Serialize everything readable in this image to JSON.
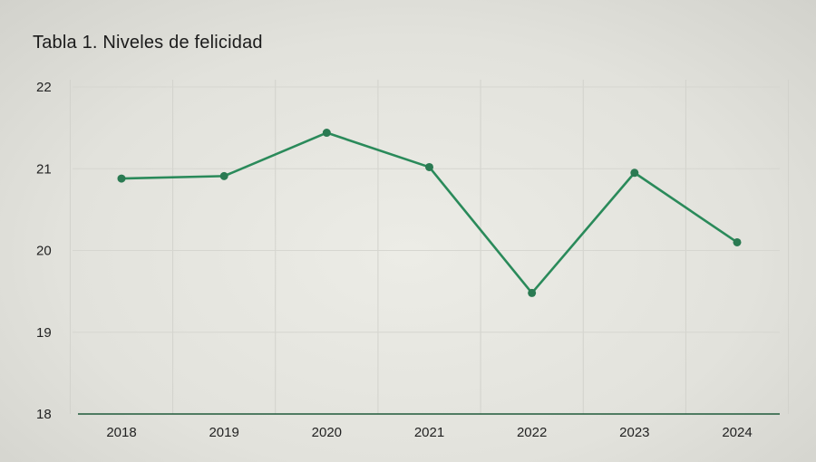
{
  "chart_data": {
    "type": "line",
    "title": "Tabla 1. Niveles de felicidad",
    "categories": [
      "2018",
      "2019",
      "2020",
      "2021",
      "2022",
      "2023",
      "2024"
    ],
    "series": [
      {
        "values": [
          20.88,
          20.91,
          21.44,
          21.02,
          19.48,
          20.95,
          20.1
        ]
      }
    ],
    "ylim": [
      18,
      22
    ],
    "yticks": [
      "18",
      "19",
      "20",
      "21",
      "22"
    ],
    "grid": true,
    "line_color": "#2a8a5a",
    "axis_color": "#1f5a3a"
  }
}
